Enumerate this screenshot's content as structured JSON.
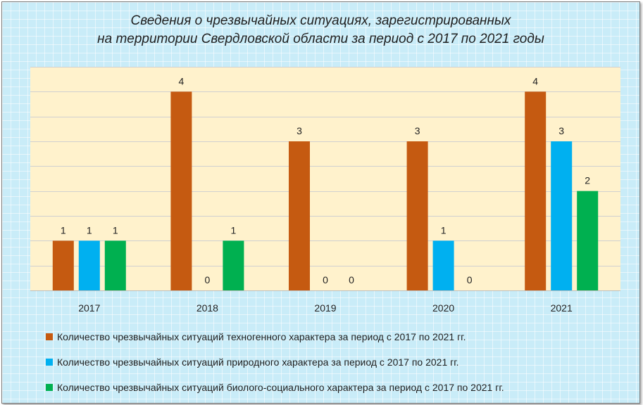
{
  "chart_data": {
    "type": "bar",
    "title_lines": [
      "Сведения о чрезвычайных ситуациях, зарегистрированных",
      "на территории Свердловской области за период с 2017 по 2021 годы"
    ],
    "categories": [
      "2017",
      "2018",
      "2019",
      "2020",
      "2021"
    ],
    "series": [
      {
        "name": "Количество чрезвычайных ситуаций техногенного характера за период с 2017 по 2021 гг.",
        "values": [
          1,
          4,
          3,
          3,
          4
        ],
        "color": "#c55a11"
      },
      {
        "name": "Количество чрезвычайных ситуаций природного характера за период с 2017 по 2021 гг.",
        "values": [
          1,
          0,
          0,
          1,
          3
        ],
        "color": "#00b0f0"
      },
      {
        "name": "Количество чрезвычайных ситуаций биолого-социального характера за период с 2017 по 2021 гг.",
        "values": [
          1,
          1,
          0,
          0,
          2
        ],
        "color": "#00b050"
      }
    ],
    "ylim": [
      0,
      4.5
    ],
    "grid": true,
    "legend_position": "bottom",
    "plot_background": "#fff2cc",
    "data_labels": true
  }
}
